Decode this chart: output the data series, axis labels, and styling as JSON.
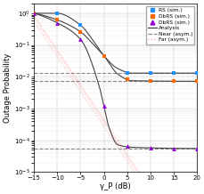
{
  "title": "",
  "xlabel": "γ_P (dB)",
  "ylabel": "Outage Probability",
  "xlim": [
    -15,
    20
  ],
  "x_ticks": [
    -15,
    -10,
    -5,
    0,
    5,
    10,
    15,
    20
  ],
  "x_sim": [
    -15,
    -10,
    -5,
    0,
    5,
    10,
    15,
    20
  ],
  "RS_sim": [
    1.0,
    1.0,
    0.42,
    0.046,
    0.013,
    0.013,
    0.013,
    0.013
  ],
  "DbRS_sim": [
    1.0,
    0.62,
    0.26,
    0.046,
    0.0082,
    0.0072,
    0.0072,
    0.0072
  ],
  "DbbRS_sim": [
    1.0,
    0.5,
    0.15,
    0.0012,
    6.8e-05,
    5.8e-05,
    5.5e-05,
    5.5e-05
  ],
  "color_RS": "#1E90FF",
  "color_DbRS": "#FF6600",
  "color_DbbRS": "#9400D3",
  "color_analysis": "#444444",
  "color_near": "#888888",
  "color_far": "#FFAAAA",
  "near_RS": 0.013,
  "near_DbRS": 0.0072,
  "near_DbbRS": 5.5e-05,
  "figsize": [
    2.3,
    2.18
  ],
  "dpi": 100
}
